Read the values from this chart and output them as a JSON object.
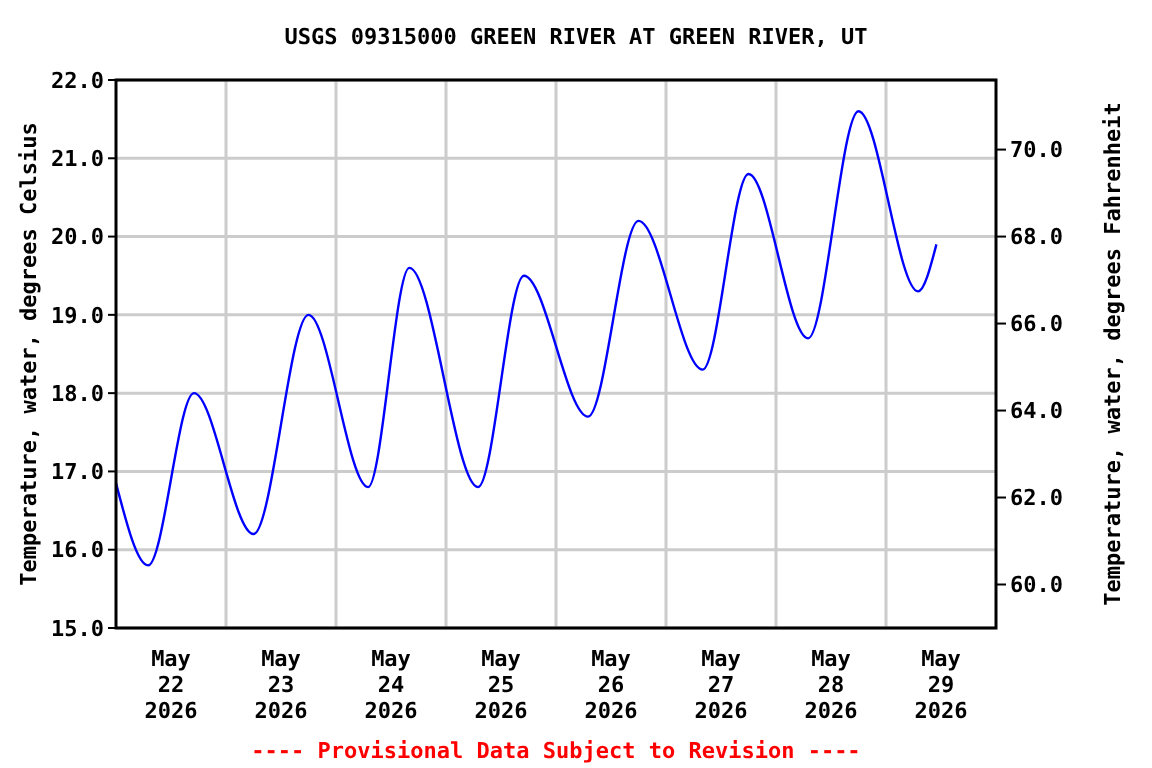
{
  "chart_data": {
    "type": "line",
    "title": "USGS 09315000 GREEN RIVER AT GREEN RIVER, UT",
    "ylabel": "Temperature, water, degrees Celsius",
    "y2label": "Temperature, water, degrees Fahrenheit",
    "annotations": [
      "---- Provisional Data Subject to Revision ----"
    ],
    "x": [
      "2026-05-22T00:00",
      "2026-05-22T07:00",
      "2026-05-22T17:00",
      "2026-05-23T06:00",
      "2026-05-23T18:00",
      "2026-05-24T07:00",
      "2026-05-24T16:00",
      "2026-05-25T07:00",
      "2026-05-25T17:00",
      "2026-05-26T07:00",
      "2026-05-26T18:00",
      "2026-05-27T08:00",
      "2026-05-27T18:00",
      "2026-05-28T07:00",
      "2026-05-28T18:00",
      "2026-05-29T07:00",
      "2026-05-29T11:00"
    ],
    "series": [
      {
        "color": "#0000ff",
        "values": [
          16.85,
          15.8,
          18.0,
          16.2,
          19.0,
          16.8,
          19.6,
          16.8,
          19.5,
          17.7,
          20.2,
          18.3,
          20.8,
          18.7,
          21.6,
          19.3,
          19.9
        ]
      }
    ],
    "xlim": [
      "2026-05-22T00:00",
      "2026-05-30T00:00"
    ],
    "xticks": [
      {
        "value": "2026-05-22T12:00",
        "label": "May\n22\n2026"
      },
      {
        "value": "2026-05-23T12:00",
        "label": "May\n23\n2026"
      },
      {
        "value": "2026-05-24T12:00",
        "label": "May\n24\n2026"
      },
      {
        "value": "2026-05-25T12:00",
        "label": "May\n25\n2026"
      },
      {
        "value": "2026-05-26T12:00",
        "label": "May\n26\n2026"
      },
      {
        "value": "2026-05-27T12:00",
        "label": "May\n27\n2026"
      },
      {
        "value": "2026-05-28T12:00",
        "label": "May\n28\n2026"
      },
      {
        "value": "2026-05-29T12:00",
        "label": "May\n29\n2026"
      },
      {
        "value": "2026-05-23T00:00",
        "label": null
      },
      {
        "value": "2026-05-24T00:00",
        "label": null
      },
      {
        "value": "2026-05-25T00:00",
        "label": null
      },
      {
        "value": "2026-05-26T00:00",
        "label": null
      },
      {
        "value": "2026-05-27T00:00",
        "label": null
      },
      {
        "value": "2026-05-28T00:00",
        "label": null
      },
      {
        "value": "2026-05-29T00:00",
        "label": null
      }
    ],
    "ylim": [
      15,
      22
    ],
    "yticks": [
      {
        "value": 15,
        "label": "15.0"
      },
      {
        "value": 16,
        "label": "16.0"
      },
      {
        "value": 17,
        "label": "17.0"
      },
      {
        "value": 18,
        "label": "18.0"
      },
      {
        "value": 19,
        "label": "19.0"
      },
      {
        "value": 20,
        "label": "20.0"
      },
      {
        "value": 21,
        "label": "21.0"
      },
      {
        "value": 22,
        "label": "22.0"
      }
    ],
    "y2lim": [
      59,
      71.6
    ],
    "y2ticks": [
      {
        "value": 60,
        "label": "60.0"
      },
      {
        "value": 62,
        "label": "62.0"
      },
      {
        "value": 64,
        "label": "64.0"
      },
      {
        "value": 66,
        "label": "66.0"
      },
      {
        "value": 68,
        "label": "68.0"
      },
      {
        "value": 70,
        "label": "70.0"
      }
    ],
    "grid": true,
    "marker": "none",
    "line_style": "solid"
  }
}
